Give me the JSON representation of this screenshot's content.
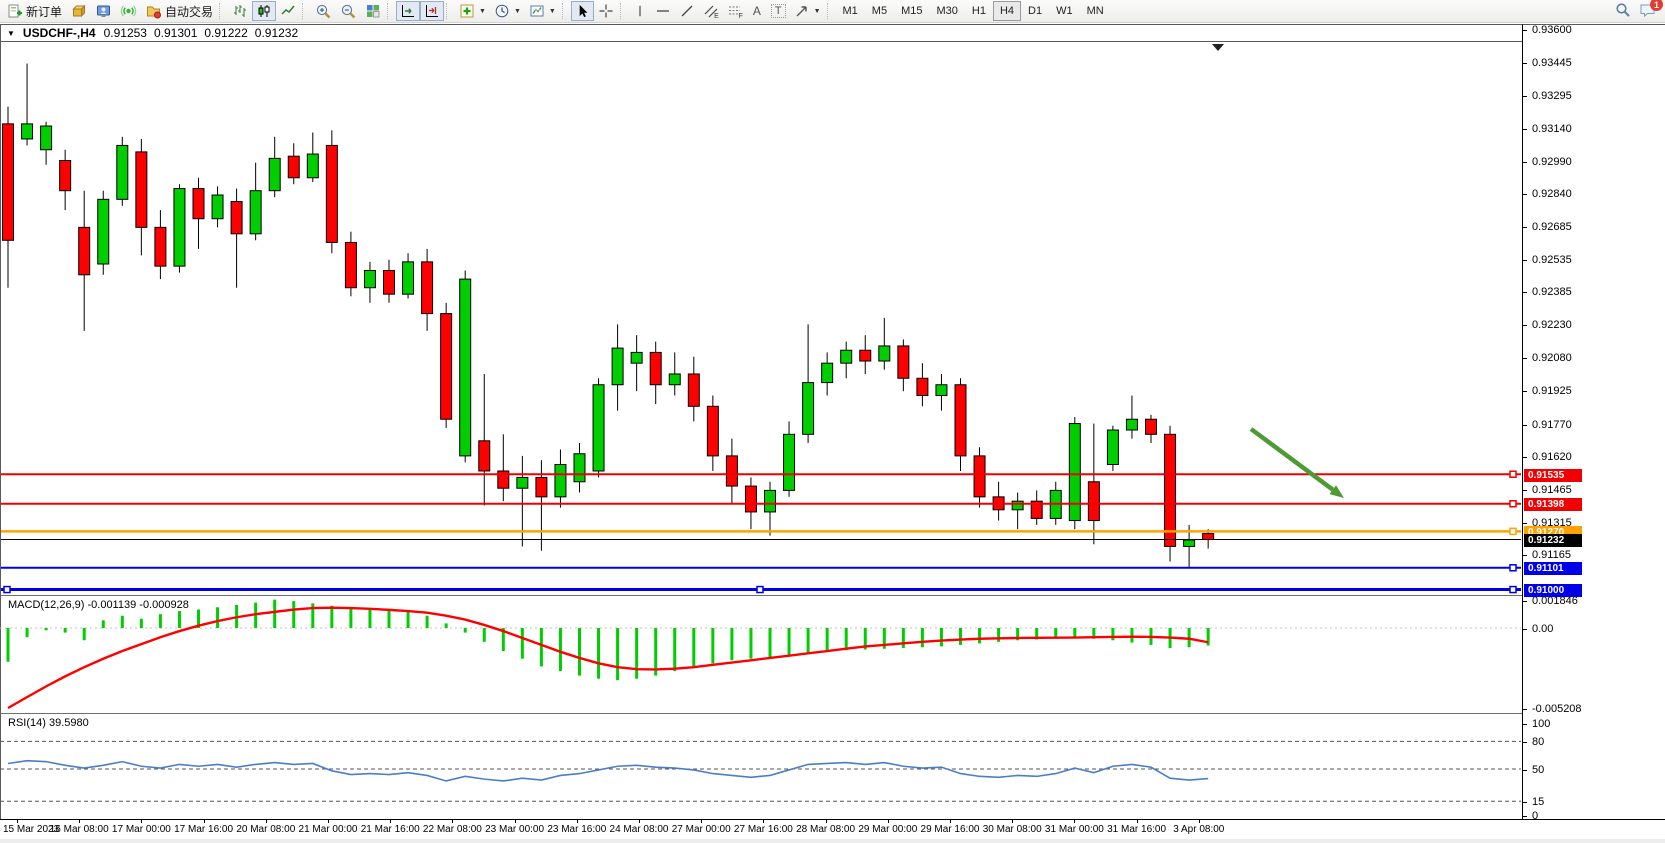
{
  "toolbar": {
    "new_order_label": "新订单",
    "autotrade_label": "自动交易",
    "text_tool_glyph": "A",
    "label_tool_glyph": "T",
    "channel_sub": "E",
    "fibo_sub": "F",
    "timeframes": [
      "M1",
      "M5",
      "M15",
      "M30",
      "H1",
      "H4",
      "D1",
      "W1",
      "MN"
    ],
    "active_timeframe": "H4",
    "notification_badge": "1"
  },
  "header": {
    "symbol_timeframe": "USDCHF-,H4",
    "open": "0.91253",
    "high": "0.91301",
    "low": "0.91222",
    "close": "0.91232"
  },
  "macd_label": {
    "name": "MACD(12,26,9)",
    "value1": "-0.001139",
    "value2": "-0.000928"
  },
  "rsi_label": {
    "name": "RSI(14)",
    "value": "39.5980"
  },
  "colors": {
    "candle_up": "#00CE00",
    "candle_down": "#FF0000",
    "wick": "#000000",
    "macd_hist": "#00CE00",
    "macd_signal": "#FF0000",
    "rsi_line": "#4B7EC8",
    "line_red": "#F00000",
    "line_orange": "#FFA200",
    "line_blue": "#0000E8",
    "line_black": "#000000",
    "arrow_green": "#4E9A35"
  },
  "chart_data": {
    "type": "candlestick",
    "symbol": "USDCHF-",
    "timeframe": "H4",
    "title": "USDCHF-,H4 0.91253 0.91301 0.91222 0.91232",
    "price_range_visible": [
      0.9097,
      0.9354
    ],
    "grid": false,
    "price_axis_ticks": [
      "0.93600",
      "0.93445",
      "0.93295",
      "0.93140",
      "0.92990",
      "0.92840",
      "0.92685",
      "0.92535",
      "0.92385",
      "0.92230",
      "0.92080",
      "0.91925",
      "0.91770",
      "0.91620",
      "0.91465",
      "0.91315",
      "0.91165"
    ],
    "time_axis_labels": [
      "15 Mar 2023",
      "16 Mar 08:00",
      "17 Mar 00:00",
      "17 Mar 16:00",
      "20 Mar 08:00",
      "21 Mar 00:00",
      "21 Mar 16:00",
      "22 Mar 08:00",
      "23 Mar 00:00",
      "23 Mar 16:00",
      "24 Mar 08:00",
      "27 Mar 00:00",
      "27 Mar 16:00",
      "28 Mar 08:00",
      "29 Mar 00:00",
      "29 Mar 16:00",
      "30 Mar 08:00",
      "31 Mar 00:00",
      "31 Mar 16:00",
      "3 Apr 08:00"
    ],
    "candles": [
      [
        0.9316,
        0.9324,
        0.924,
        0.9262
      ],
      [
        0.9309,
        0.9344,
        0.9306,
        0.9316
      ],
      [
        0.9304,
        0.9317,
        0.9297,
        0.9315
      ],
      [
        0.9299,
        0.9304,
        0.9276,
        0.9285
      ],
      [
        0.9268,
        0.9285,
        0.922,
        0.9246
      ],
      [
        0.9251,
        0.9285,
        0.9246,
        0.9281
      ],
      [
        0.9281,
        0.931,
        0.9278,
        0.9306
      ],
      [
        0.9303,
        0.9309,
        0.9255,
        0.9268
      ],
      [
        0.9268,
        0.9276,
        0.9244,
        0.925
      ],
      [
        0.925,
        0.9288,
        0.9247,
        0.9286
      ],
      [
        0.9286,
        0.9291,
        0.9258,
        0.9272
      ],
      [
        0.9272,
        0.9287,
        0.9268,
        0.9283
      ],
      [
        0.928,
        0.9286,
        0.924,
        0.9265
      ],
      [
        0.9265,
        0.9298,
        0.9262,
        0.9285
      ],
      [
        0.9285,
        0.931,
        0.9282,
        0.93
      ],
      [
        0.9301,
        0.9307,
        0.9288,
        0.9291
      ],
      [
        0.9291,
        0.9312,
        0.9289,
        0.9302
      ],
      [
        0.9306,
        0.9313,
        0.9256,
        0.9261
      ],
      [
        0.9261,
        0.9266,
        0.9236,
        0.924
      ],
      [
        0.924,
        0.9252,
        0.9233,
        0.9248
      ],
      [
        0.9248,
        0.9253,
        0.9233,
        0.9237
      ],
      [
        0.9237,
        0.9256,
        0.9235,
        0.9252
      ],
      [
        0.9252,
        0.9258,
        0.922,
        0.9228
      ],
      [
        0.9228,
        0.9233,
        0.9175,
        0.9179
      ],
      [
        0.9162,
        0.9248,
        0.9159,
        0.9244
      ],
      [
        0.9169,
        0.92,
        0.9139,
        0.9155
      ],
      [
        0.9155,
        0.9172,
        0.9141,
        0.9147
      ],
      [
        0.9147,
        0.9162,
        0.912,
        0.9152
      ],
      [
        0.9152,
        0.916,
        0.9118,
        0.9143
      ],
      [
        0.9143,
        0.9165,
        0.9138,
        0.9158
      ],
      [
        0.915,
        0.9168,
        0.9145,
        0.9163
      ],
      [
        0.9155,
        0.9198,
        0.9152,
        0.9195
      ],
      [
        0.9195,
        0.9223,
        0.9183,
        0.9212
      ],
      [
        0.9205,
        0.9218,
        0.9192,
        0.921
      ],
      [
        0.921,
        0.9215,
        0.9186,
        0.9195
      ],
      [
        0.9195,
        0.921,
        0.919,
        0.92
      ],
      [
        0.92,
        0.9208,
        0.9178,
        0.9185
      ],
      [
        0.9185,
        0.919,
        0.9155,
        0.9162
      ],
      [
        0.9162,
        0.917,
        0.914,
        0.9148
      ],
      [
        0.9148,
        0.9152,
        0.9128,
        0.9136
      ],
      [
        0.9136,
        0.915,
        0.9125,
        0.9146
      ],
      [
        0.9146,
        0.9178,
        0.9143,
        0.9172
      ],
      [
        0.9172,
        0.9223,
        0.9168,
        0.9196
      ],
      [
        0.9196,
        0.921,
        0.919,
        0.9205
      ],
      [
        0.9205,
        0.9215,
        0.9198,
        0.9211
      ],
      [
        0.9211,
        0.9218,
        0.92,
        0.9206
      ],
      [
        0.9206,
        0.9226,
        0.9202,
        0.9213
      ],
      [
        0.9213,
        0.9216,
        0.9192,
        0.9198
      ],
      [
        0.9198,
        0.9205,
        0.9185,
        0.919
      ],
      [
        0.919,
        0.92,
        0.9183,
        0.9195
      ],
      [
        0.9195,
        0.9198,
        0.9155,
        0.9162
      ],
      [
        0.9162,
        0.9166,
        0.9138,
        0.9143
      ],
      [
        0.9143,
        0.915,
        0.9132,
        0.9137
      ],
      [
        0.9137,
        0.9145,
        0.9128,
        0.9141
      ],
      [
        0.9141,
        0.9146,
        0.913,
        0.9133
      ],
      [
        0.9133,
        0.915,
        0.913,
        0.9146
      ],
      [
        0.9132,
        0.918,
        0.9128,
        0.9177
      ],
      [
        0.915,
        0.9177,
        0.9121,
        0.9132
      ],
      [
        0.9158,
        0.9176,
        0.9155,
        0.9174
      ],
      [
        0.9174,
        0.919,
        0.917,
        0.9179
      ],
      [
        0.9179,
        0.9181,
        0.9168,
        0.9172
      ],
      [
        0.9172,
        0.9176,
        0.9113,
        0.912
      ],
      [
        0.912,
        0.913,
        0.911,
        0.9123
      ],
      [
        0.9126,
        0.9128,
        0.9119,
        0.91232
      ]
    ],
    "horizontal_lines": [
      {
        "price": 0.91535,
        "label": "0.91535",
        "color": "#F00000",
        "width": 2,
        "tag_bg": "#F00000"
      },
      {
        "price": 0.91398,
        "label": "0.91398",
        "color": "#F00000",
        "width": 2,
        "tag_bg": "#F00000"
      },
      {
        "price": 0.9127,
        "label": "0.91270",
        "color": "#FFA200",
        "width": 2.5,
        "tag_bg": "#FFA200"
      },
      {
        "price": 0.91232,
        "label": "0.91232",
        "color": "#000000",
        "width": 1,
        "tag_bg": "#000000"
      },
      {
        "price": 0.91101,
        "label": "0.91101",
        "color": "#0000E8",
        "width": 2,
        "tag_bg": "#0000E8"
      },
      {
        "price": 0.91,
        "label": "0.91000",
        "color": "#0000E8",
        "width": 3,
        "tag_bg": "#0000E8",
        "selected": true
      }
    ],
    "indicators": {
      "macd": {
        "params": "12,26,9",
        "current_macd": -0.001139,
        "current_signal": -0.000928,
        "axis_labels": [
          "0.001846",
          "0.00",
          "-0.005208"
        ],
        "histogram_x1000": [
          -2.2,
          -0.6,
          -0.15,
          -0.3,
          -0.8,
          0.5,
          0.8,
          0.6,
          0.9,
          1.1,
          1.2,
          1.35,
          1.5,
          1.65,
          1.846,
          1.75,
          1.6,
          1.45,
          1.35,
          1.25,
          1.15,
          1.05,
          0.8,
          0.3,
          -0.3,
          -0.9,
          -1.5,
          -2.0,
          -2.5,
          -2.8,
          -3.1,
          -3.3,
          -3.4,
          -3.3,
          -3.1,
          -2.8,
          -2.5,
          -2.3,
          -2.1,
          -2.0,
          -1.9,
          -1.75,
          -1.6,
          -1.5,
          -1.45,
          -1.4,
          -1.35,
          -1.3,
          -1.25,
          -1.2,
          -1.1,
          -1.0,
          -0.9,
          -0.8,
          -0.75,
          -0.7,
          -0.65,
          -0.7,
          -0.8,
          -0.95,
          -1.1,
          -1.3,
          -1.25,
          -1.139
        ],
        "signal_x1000": [
          -5.208,
          -4.5,
          -3.8,
          -3.15,
          -2.55,
          -2.0,
          -1.5,
          -1.05,
          -0.6,
          -0.2,
          0.15,
          0.45,
          0.7,
          0.9,
          1.05,
          1.2,
          1.3,
          1.32,
          1.3,
          1.25,
          1.18,
          1.1,
          1.0,
          0.8,
          0.55,
          0.2,
          -0.2,
          -0.65,
          -1.1,
          -1.55,
          -1.95,
          -2.3,
          -2.55,
          -2.68,
          -2.7,
          -2.65,
          -2.55,
          -2.4,
          -2.25,
          -2.1,
          -1.95,
          -1.8,
          -1.65,
          -1.5,
          -1.35,
          -1.2,
          -1.1,
          -1.0,
          -0.9,
          -0.82,
          -0.75,
          -0.7,
          -0.67,
          -0.65,
          -0.64,
          -0.63,
          -0.62,
          -0.6,
          -0.58,
          -0.57,
          -0.58,
          -0.62,
          -0.7,
          -0.928
        ]
      },
      "rsi": {
        "params": "14",
        "current": 39.598,
        "levels": [
          100,
          80,
          50,
          15,
          0
        ],
        "values": [
          56,
          59,
          58,
          54,
          51,
          54,
          58,
          53,
          51,
          55,
          53,
          55,
          52,
          55,
          57,
          55,
          56,
          48,
          44,
          45,
          44,
          46,
          43,
          37,
          42,
          39,
          37,
          40,
          38,
          43,
          45,
          49,
          53,
          54,
          52,
          51,
          49,
          45,
          43,
          41,
          43,
          49,
          55,
          56,
          57,
          55,
          57,
          53,
          51,
          52,
          45,
          42,
          41,
          43,
          42,
          45,
          51,
          46,
          53,
          55,
          52,
          40,
          38,
          39.598
        ]
      }
    },
    "annotations": [
      {
        "type": "arrow",
        "from": [
          1251,
          429
        ],
        "to": [
          1344,
          498
        ],
        "color": "#4E9A35"
      }
    ]
  }
}
